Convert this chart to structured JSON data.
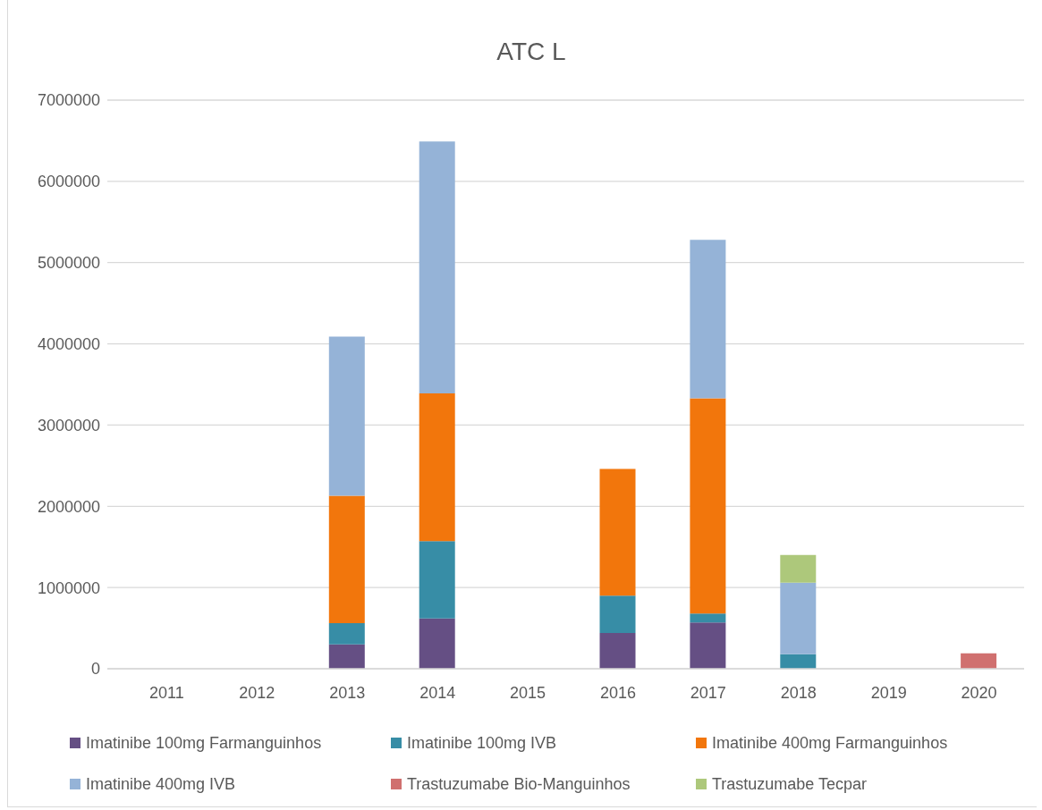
{
  "chart_data": {
    "type": "bar",
    "title": "ATC L",
    "stacked": true,
    "categories": [
      "2011",
      "2012",
      "2013",
      "2014",
      "2015",
      "2016",
      "2017",
      "2018",
      "2019",
      "2020"
    ],
    "series": [
      {
        "name": "Imatinibe 100mg Farmanguinhos",
        "color": "#654f84",
        "values": [
          null,
          null,
          300000,
          620000,
          null,
          440000,
          570000,
          null,
          null,
          null
        ]
      },
      {
        "name": "Imatinibe 100mg IVB",
        "color": "#378da6",
        "values": [
          null,
          null,
          260000,
          950000,
          null,
          460000,
          110000,
          180000,
          null,
          null
        ]
      },
      {
        "name": "Imatinibe 400mg Farmanguinhos",
        "color": "#f2760c",
        "values": [
          null,
          null,
          1570000,
          1820000,
          null,
          1560000,
          2650000,
          null,
          null,
          null
        ]
      },
      {
        "name": "Imatinibe 400mg IVB",
        "color": "#95b3d7",
        "values": [
          null,
          null,
          1960000,
          3100000,
          null,
          null,
          1950000,
          880000,
          null,
          null
        ]
      },
      {
        "name": "Trastuzumabe Bio-Manguinhos",
        "color": "#d0706f",
        "values": [
          null,
          null,
          null,
          null,
          null,
          null,
          null,
          null,
          null,
          190000
        ]
      },
      {
        "name": "Trastuzumabe Tecpar",
        "color": "#adc87b",
        "values": [
          null,
          null,
          null,
          null,
          null,
          null,
          null,
          340000,
          null,
          null
        ]
      }
    ],
    "ylim": [
      0,
      7000000
    ],
    "yticks": [
      0,
      1000000,
      2000000,
      3000000,
      4000000,
      5000000,
      6000000,
      7000000
    ],
    "grid": "y",
    "legend": "bottom"
  }
}
